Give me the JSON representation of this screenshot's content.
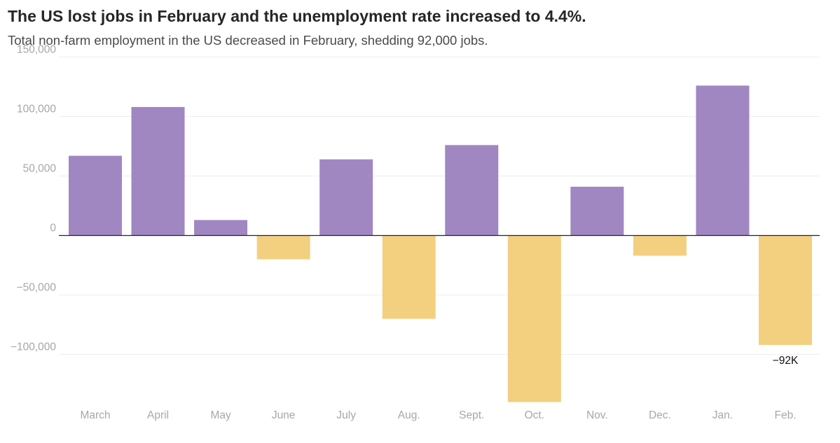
{
  "chart_data": {
    "type": "bar",
    "title": "The US lost jobs in February and the unemployment rate increased to 4.4%.",
    "subtitle": "Total non-farm employment in the US decreased in February, shedding 92,000 jobs.",
    "xlabel": "",
    "ylabel": "",
    "ylim": [
      -140000,
      150000
    ],
    "yticks": [
      150000,
      100000,
      50000,
      0,
      -50000,
      -100000
    ],
    "ytick_labels": [
      "150,000",
      "100,000",
      "50,000",
      "0",
      "−50,000",
      "−100,000"
    ],
    "categories": [
      "March",
      "April",
      "May",
      "June",
      "July",
      "Aug.",
      "Sept.",
      "Oct.",
      "Nov.",
      "Dec.",
      "Jan.",
      "Feb."
    ],
    "values": [
      67000,
      108000,
      13000,
      -20000,
      64000,
      -70000,
      76000,
      -140000,
      41000,
      -17000,
      126000,
      -92000
    ],
    "grid": true,
    "colors": {
      "positive": "#a087c2",
      "negative": "#f3cf80",
      "grid": "#eeeeee",
      "zero_line": "#222222"
    },
    "annotations": [
      {
        "category": "Feb.",
        "text": "−92K"
      }
    ]
  }
}
